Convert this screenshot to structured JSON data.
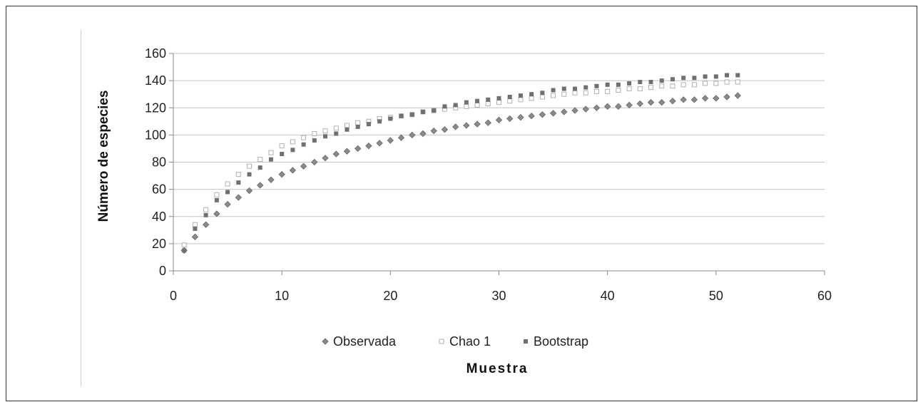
{
  "chart_data": {
    "type": "scatter",
    "xlabel": "Muestra",
    "ylabel": "Número   de   especies",
    "xlim": [
      0,
      60
    ],
    "ylim": [
      0,
      160
    ],
    "xticks": [
      0,
      10,
      20,
      30,
      40,
      50,
      60
    ],
    "yticks": [
      0,
      20,
      40,
      60,
      80,
      100,
      120,
      140,
      160
    ],
    "grid": "horizontal",
    "legend_position": "bottom",
    "series": [
      {
        "name": "Observada",
        "marker": "diamond",
        "color": "#8a8a8a",
        "x": [
          1,
          2,
          3,
          4,
          5,
          6,
          7,
          8,
          9,
          10,
          11,
          12,
          13,
          14,
          15,
          16,
          17,
          18,
          19,
          20,
          21,
          22,
          23,
          24,
          25,
          26,
          27,
          28,
          29,
          30,
          31,
          32,
          33,
          34,
          35,
          36,
          37,
          38,
          39,
          40,
          41,
          42,
          43,
          44,
          45,
          46,
          47,
          48,
          49,
          50,
          51,
          52
        ],
        "y": [
          15,
          25,
          34,
          42,
          49,
          54,
          59,
          63,
          67,
          71,
          74,
          77,
          80,
          83,
          86,
          88,
          90,
          92,
          94,
          96,
          98,
          100,
          101,
          103,
          104,
          106,
          107,
          108,
          109,
          111,
          112,
          113,
          114,
          115,
          116,
          117,
          118,
          119,
          120,
          121,
          121,
          122,
          123,
          124,
          124,
          125,
          126,
          126,
          127,
          127,
          128,
          129
        ]
      },
      {
        "name": "Chao 1",
        "marker": "square-open",
        "color": "#b0b0b0",
        "x": [
          1,
          2,
          3,
          4,
          5,
          6,
          7,
          8,
          9,
          10,
          11,
          12,
          13,
          14,
          15,
          16,
          17,
          18,
          19,
          20,
          21,
          22,
          23,
          24,
          25,
          26,
          27,
          28,
          29,
          30,
          31,
          32,
          33,
          34,
          35,
          36,
          37,
          38,
          39,
          40,
          41,
          42,
          43,
          44,
          45,
          46,
          47,
          48,
          49,
          50,
          51,
          52
        ],
        "y": [
          19,
          34,
          45,
          56,
          64,
          71,
          77,
          82,
          87,
          92,
          95,
          98,
          101,
          103,
          105,
          107,
          109,
          110,
          112,
          113,
          114,
          115,
          117,
          118,
          119,
          120,
          121,
          122,
          123,
          124,
          125,
          126,
          127,
          128,
          129,
          130,
          131,
          131,
          132,
          132,
          133,
          134,
          134,
          135,
          136,
          136,
          137,
          137,
          138,
          138,
          139,
          139
        ]
      },
      {
        "name": "Bootstrap",
        "marker": "square",
        "color": "#707070",
        "x": [
          1,
          2,
          3,
          4,
          5,
          6,
          7,
          8,
          9,
          10,
          11,
          12,
          13,
          14,
          15,
          16,
          17,
          18,
          19,
          20,
          21,
          22,
          23,
          24,
          25,
          26,
          27,
          28,
          29,
          30,
          31,
          32,
          33,
          34,
          35,
          36,
          37,
          38,
          39,
          40,
          41,
          42,
          43,
          44,
          45,
          46,
          47,
          48,
          49,
          50,
          51,
          52
        ],
        "y": [
          15,
          31,
          41,
          52,
          58,
          65,
          71,
          76,
          82,
          86,
          89,
          93,
          96,
          99,
          101,
          104,
          106,
          108,
          110,
          112,
          114,
          115,
          117,
          118,
          121,
          122,
          124,
          125,
          126,
          127,
          128,
          129,
          130,
          131,
          133,
          134,
          134,
          135,
          136,
          137,
          137,
          138,
          139,
          139,
          140,
          141,
          142,
          142,
          143,
          143,
          144,
          144
        ]
      }
    ]
  }
}
